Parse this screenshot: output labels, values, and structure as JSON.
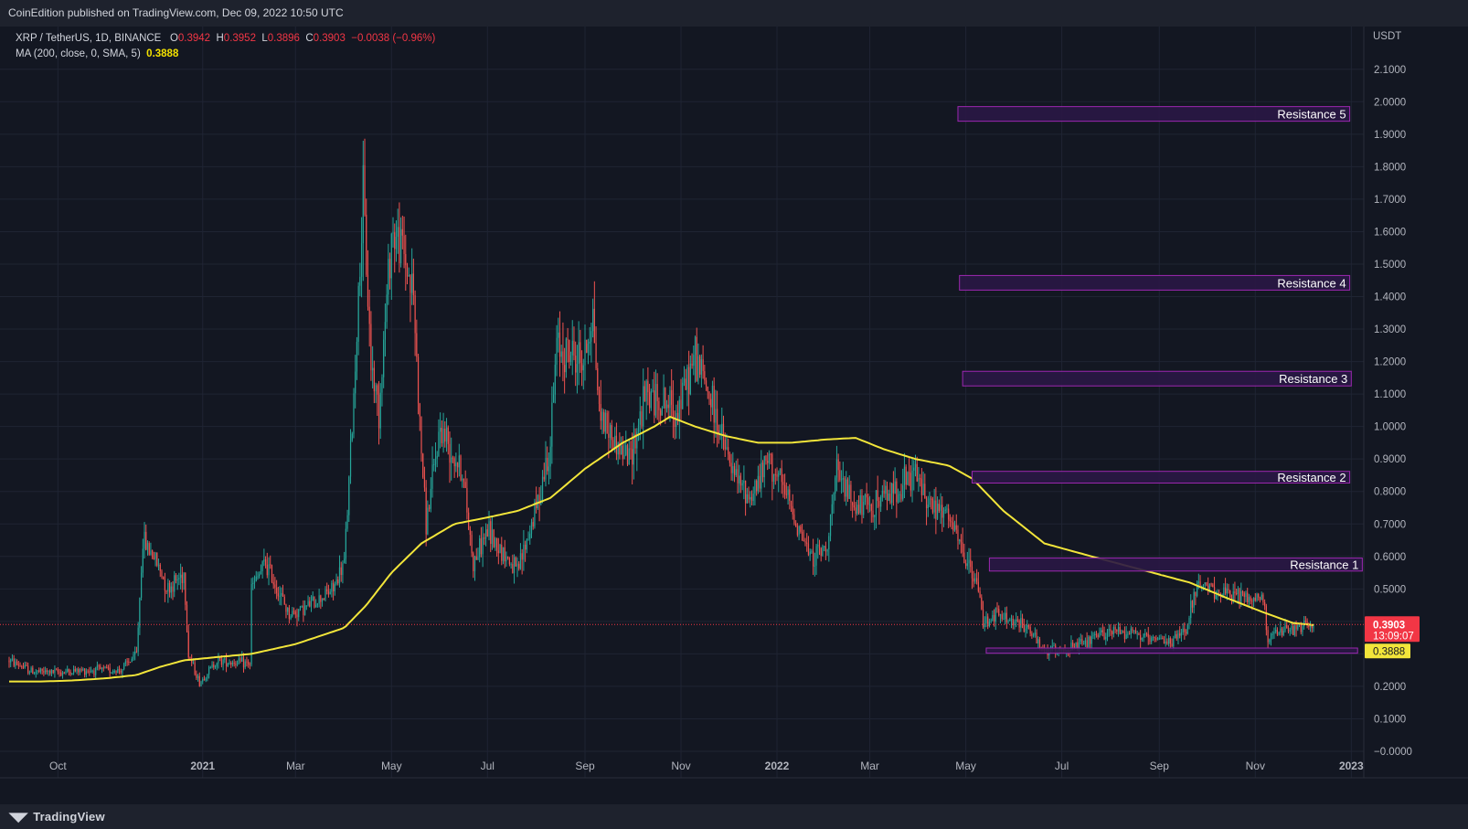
{
  "header": {
    "published": "CoinEdition published on TradingView.com, Dec 09, 2022 10:50 UTC"
  },
  "legend": {
    "symbol": "XRP / TetherUS, 1D, BINANCE",
    "o_label": "O",
    "o": "0.3942",
    "h_label": "H",
    "h": "0.3952",
    "l_label": "L",
    "l": "0.3896",
    "c_label": "C",
    "c": "0.3903",
    "change": "−0.0038 (−0.96%)",
    "ma_label": "MA (200, close, 0, SMA, 5)",
    "ma_value": "0.3888"
  },
  "footer": {
    "brand": "TradingView",
    "logo_icon": "tradingview-logo-icon"
  },
  "colors": {
    "background": "#131722",
    "grid": "#1f2433",
    "up": "#26a69a",
    "down": "#ef5350",
    "ma": "#f2e53a",
    "zone_fill": "#2a1745",
    "zone_border": "#9c27b0",
    "price_label": "#f23645",
    "ma_label": "#f2e53a",
    "axis_text": "#b2b5be"
  },
  "chart_data": {
    "type": "candlestick",
    "unit": "USDT",
    "x_labels": [
      "Oct",
      "2021",
      "Mar",
      "May",
      "Jul",
      "Sep",
      "Nov",
      "2022",
      "Mar",
      "May",
      "Jul",
      "Sep",
      "Nov",
      "2023"
    ],
    "x_label_dates": [
      "2020-10-01",
      "2021-01-01",
      "2021-03-01",
      "2021-05-01",
      "2021-07-01",
      "2021-09-01",
      "2021-11-01",
      "2022-01-01",
      "2022-03-01",
      "2022-05-01",
      "2022-07-01",
      "2022-09-01",
      "2022-11-01",
      "2023-01-01"
    ],
    "x_range": [
      "2020-08-31",
      "2023-02-07"
    ],
    "ylim": [
      0,
      2.15
    ],
    "y_ticks": [
      "2.1000",
      "2.0000",
      "1.9000",
      "1.8000",
      "1.7000",
      "1.6000",
      "1.5000",
      "1.4000",
      "1.3000",
      "1.2000",
      "1.1000",
      "1.0000",
      "0.9000",
      "0.8000",
      "0.7000",
      "0.6000",
      "0.5000",
      "0.4000",
      "0.3000",
      "0.2000",
      "0.1000",
      "−0.0000"
    ],
    "grid": true,
    "price_line": 0.3903,
    "price_label": "0.3903",
    "countdown": "13:09:07",
    "ma_last_label": "0.3888",
    "price_anchors": [
      [
        "2020-08-31",
        0.28
      ],
      [
        "2020-09-15",
        0.245
      ],
      [
        "2020-10-01",
        0.243
      ],
      [
        "2020-10-20",
        0.25
      ],
      [
        "2020-11-10",
        0.25
      ],
      [
        "2020-11-20",
        0.3
      ],
      [
        "2020-11-24",
        0.65
      ],
      [
        "2020-12-01",
        0.6
      ],
      [
        "2020-12-10",
        0.5
      ],
      [
        "2020-12-20",
        0.55
      ],
      [
        "2020-12-23",
        0.3
      ],
      [
        "2020-12-30",
        0.21
      ],
      [
        "2021-01-10",
        0.28
      ],
      [
        "2021-01-31",
        0.27
      ],
      [
        "2021-02-01",
        0.5
      ],
      [
        "2021-02-10",
        0.58
      ],
      [
        "2021-02-25",
        0.42
      ],
      [
        "2021-03-10",
        0.45
      ],
      [
        "2021-03-25",
        0.5
      ],
      [
        "2021-04-01",
        0.58
      ],
      [
        "2021-04-06",
        1.0
      ],
      [
        "2021-04-13",
        1.7
      ],
      [
        "2021-04-18",
        1.2
      ],
      [
        "2021-04-23",
        1.05
      ],
      [
        "2021-05-01",
        1.6
      ],
      [
        "2021-05-08",
        1.55
      ],
      [
        "2021-05-15",
        1.4
      ],
      [
        "2021-05-19",
        1.0
      ],
      [
        "2021-05-23",
        0.7
      ],
      [
        "2021-06-01",
        1.0
      ],
      [
        "2021-06-15",
        0.86
      ],
      [
        "2021-06-22",
        0.58
      ],
      [
        "2021-07-01",
        0.68
      ],
      [
        "2021-07-20",
        0.55
      ],
      [
        "2021-08-01",
        0.75
      ],
      [
        "2021-08-10",
        0.95
      ],
      [
        "2021-08-14",
        1.25
      ],
      [
        "2021-08-31",
        1.2
      ],
      [
        "2021-09-06",
        1.35
      ],
      [
        "2021-09-10",
        1.05
      ],
      [
        "2021-09-20",
        0.95
      ],
      [
        "2021-09-29",
        0.9
      ],
      [
        "2021-10-10",
        1.1
      ],
      [
        "2021-10-30",
        1.05
      ],
      [
        "2021-11-10",
        1.22
      ],
      [
        "2021-11-20",
        1.08
      ],
      [
        "2021-12-04",
        0.85
      ],
      [
        "2021-12-15",
        0.78
      ],
      [
        "2021-12-27",
        0.9
      ],
      [
        "2022-01-10",
        0.75
      ],
      [
        "2022-01-22",
        0.6
      ],
      [
        "2022-02-01",
        0.62
      ],
      [
        "2022-02-08",
        0.85
      ],
      [
        "2022-02-20",
        0.75
      ],
      [
        "2022-03-01",
        0.75
      ],
      [
        "2022-03-15",
        0.8
      ],
      [
        "2022-03-30",
        0.85
      ],
      [
        "2022-04-10",
        0.75
      ],
      [
        "2022-04-20",
        0.72
      ],
      [
        "2022-04-30",
        0.6
      ],
      [
        "2022-05-09",
        0.5
      ],
      [
        "2022-05-12",
        0.4
      ],
      [
        "2022-05-20",
        0.42
      ],
      [
        "2022-06-10",
        0.38
      ],
      [
        "2022-06-18",
        0.31
      ],
      [
        "2022-07-10",
        0.32
      ],
      [
        "2022-07-31",
        0.37
      ],
      [
        "2022-08-15",
        0.37
      ],
      [
        "2022-08-25",
        0.34
      ],
      [
        "2022-09-10",
        0.34
      ],
      [
        "2022-09-18",
        0.38
      ],
      [
        "2022-09-24",
        0.5
      ],
      [
        "2022-10-05",
        0.5
      ],
      [
        "2022-10-15",
        0.48
      ],
      [
        "2022-10-31",
        0.47
      ],
      [
        "2022-11-06",
        0.47
      ],
      [
        "2022-11-09",
        0.35
      ],
      [
        "2022-11-20",
        0.37
      ],
      [
        "2022-12-08",
        0.3903
      ]
    ],
    "ma_anchors": [
      [
        "2020-08-31",
        0.215
      ],
      [
        "2020-09-20",
        0.215
      ],
      [
        "2020-10-10",
        0.218
      ],
      [
        "2020-11-01",
        0.225
      ],
      [
        "2020-11-20",
        0.235
      ],
      [
        "2020-12-05",
        0.26
      ],
      [
        "2020-12-20",
        0.28
      ],
      [
        "2021-01-10",
        0.29
      ],
      [
        "2021-02-01",
        0.3
      ],
      [
        "2021-03-01",
        0.33
      ],
      [
        "2021-04-01",
        0.38
      ],
      [
        "2021-04-15",
        0.45
      ],
      [
        "2021-05-01",
        0.55
      ],
      [
        "2021-05-20",
        0.64
      ],
      [
        "2021-06-10",
        0.7
      ],
      [
        "2021-07-01",
        0.72
      ],
      [
        "2021-07-20",
        0.74
      ],
      [
        "2021-08-10",
        0.78
      ],
      [
        "2021-09-01",
        0.87
      ],
      [
        "2021-09-25",
        0.95
      ],
      [
        "2021-10-15",
        1.0
      ],
      [
        "2021-10-25",
        1.03
      ],
      [
        "2021-11-10",
        1.0
      ],
      [
        "2021-11-30",
        0.97
      ],
      [
        "2021-12-20",
        0.95
      ],
      [
        "2022-01-10",
        0.95
      ],
      [
        "2022-02-01",
        0.96
      ],
      [
        "2022-02-20",
        0.965
      ],
      [
        "2022-03-10",
        0.93
      ],
      [
        "2022-03-30",
        0.9
      ],
      [
        "2022-04-20",
        0.88
      ],
      [
        "2022-05-05",
        0.84
      ],
      [
        "2022-05-25",
        0.74
      ],
      [
        "2022-06-20",
        0.64
      ],
      [
        "2022-07-20",
        0.6
      ],
      [
        "2022-08-20",
        0.56
      ],
      [
        "2022-09-20",
        0.52
      ],
      [
        "2022-10-15",
        0.47
      ],
      [
        "2022-11-05",
        0.43
      ],
      [
        "2022-11-25",
        0.395
      ],
      [
        "2022-12-08",
        0.3888
      ]
    ],
    "zones": [
      {
        "label": "Resistance 5",
        "low": 1.94,
        "high": 1.985,
        "start": "2022-04-26",
        "end": "2022-12-31"
      },
      {
        "label": "Resistance 4",
        "low": 1.42,
        "high": 1.465,
        "start": "2022-04-27",
        "end": "2022-12-31"
      },
      {
        "label": "Resistance 3",
        "low": 1.125,
        "high": 1.17,
        "start": "2022-04-29",
        "end": "2023-01-01"
      },
      {
        "label": "Resistance 2",
        "low": 0.826,
        "high": 0.862,
        "start": "2022-05-05",
        "end": "2022-12-31"
      },
      {
        "label": "Resistance 1",
        "low": 0.555,
        "high": 0.595,
        "start": "2022-05-16",
        "end": "2023-01-08"
      },
      {
        "label": "",
        "low": 0.302,
        "high": 0.318,
        "start": "2022-05-14",
        "end": "2023-01-05"
      }
    ]
  }
}
